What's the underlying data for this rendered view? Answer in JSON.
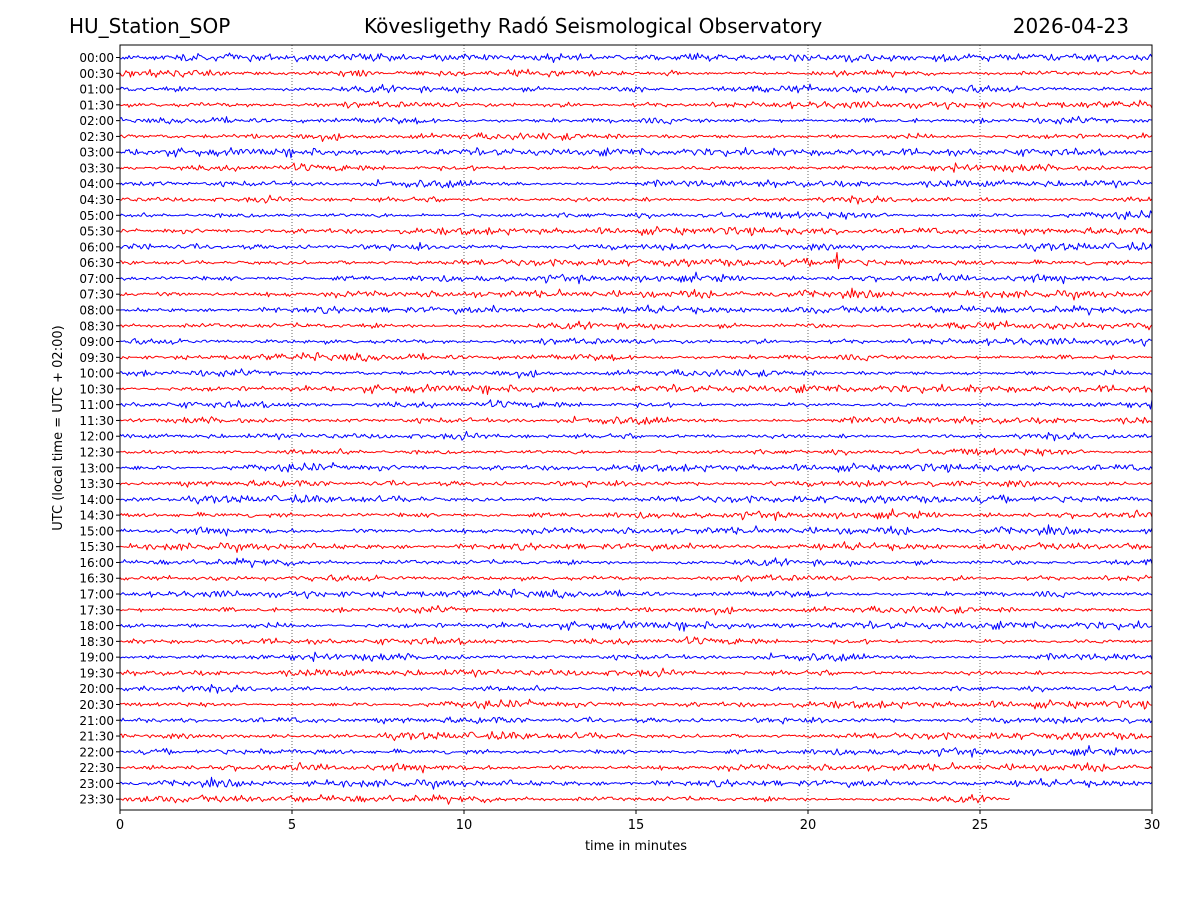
{
  "header": {
    "station": "HU_Station_SOP",
    "observatory": "Kövesligethy Radó Seismological Observatory",
    "date": "2026-04-23"
  },
  "chart_data": {
    "type": "line",
    "title": "Kövesligethy Radó Seismological Observatory",
    "xlabel": "time in minutes",
    "ylabel": "UTC (local time = UTC + 02:00)",
    "xlim": [
      0,
      30
    ],
    "xticks": [
      0,
      5,
      10,
      15,
      20,
      25,
      30
    ],
    "grid": "vertical dotted lines at x ticks",
    "series_colors": [
      "#0000ff",
      "#ff0000"
    ],
    "traces": [
      {
        "label": "00:00",
        "color": "blue",
        "end_min": 30
      },
      {
        "label": "00:30",
        "color": "red",
        "end_min": 30
      },
      {
        "label": "01:00",
        "color": "blue",
        "end_min": 30
      },
      {
        "label": "01:30",
        "color": "red",
        "end_min": 30
      },
      {
        "label": "02:00",
        "color": "blue",
        "end_min": 30
      },
      {
        "label": "02:30",
        "color": "red",
        "end_min": 30
      },
      {
        "label": "03:00",
        "color": "blue",
        "end_min": 30
      },
      {
        "label": "03:30",
        "color": "red",
        "end_min": 30
      },
      {
        "label": "04:00",
        "color": "blue",
        "end_min": 30
      },
      {
        "label": "04:30",
        "color": "red",
        "end_min": 30
      },
      {
        "label": "05:00",
        "color": "blue",
        "end_min": 30
      },
      {
        "label": "05:30",
        "color": "red",
        "end_min": 30
      },
      {
        "label": "06:00",
        "color": "blue",
        "end_min": 30
      },
      {
        "label": "06:30",
        "color": "red",
        "end_min": 30
      },
      {
        "label": "07:00",
        "color": "blue",
        "end_min": 30
      },
      {
        "label": "07:30",
        "color": "red",
        "end_min": 30
      },
      {
        "label": "08:00",
        "color": "blue",
        "end_min": 30
      },
      {
        "label": "08:30",
        "color": "red",
        "end_min": 30
      },
      {
        "label": "09:00",
        "color": "blue",
        "end_min": 30
      },
      {
        "label": "09:30",
        "color": "red",
        "end_min": 30
      },
      {
        "label": "10:00",
        "color": "blue",
        "end_min": 30
      },
      {
        "label": "10:30",
        "color": "red",
        "end_min": 30
      },
      {
        "label": "11:00",
        "color": "blue",
        "end_min": 30
      },
      {
        "label": "11:30",
        "color": "red",
        "end_min": 30
      },
      {
        "label": "12:00",
        "color": "blue",
        "end_min": 30
      },
      {
        "label": "12:30",
        "color": "red",
        "end_min": 30
      },
      {
        "label": "13:00",
        "color": "blue",
        "end_min": 30
      },
      {
        "label": "13:30",
        "color": "red",
        "end_min": 30
      },
      {
        "label": "14:00",
        "color": "blue",
        "end_min": 30
      },
      {
        "label": "14:30",
        "color": "red",
        "end_min": 30
      },
      {
        "label": "15:00",
        "color": "blue",
        "end_min": 30
      },
      {
        "label": "15:30",
        "color": "red",
        "end_min": 30
      },
      {
        "label": "16:00",
        "color": "blue",
        "end_min": 30
      },
      {
        "label": "16:30",
        "color": "red",
        "end_min": 30
      },
      {
        "label": "17:00",
        "color": "blue",
        "end_min": 30
      },
      {
        "label": "17:30",
        "color": "red",
        "end_min": 30
      },
      {
        "label": "18:00",
        "color": "blue",
        "end_min": 30
      },
      {
        "label": "18:30",
        "color": "red",
        "end_min": 30
      },
      {
        "label": "19:00",
        "color": "blue",
        "end_min": 30
      },
      {
        "label": "19:30",
        "color": "red",
        "end_min": 30
      },
      {
        "label": "20:00",
        "color": "blue",
        "end_min": 30
      },
      {
        "label": "20:30",
        "color": "red",
        "end_min": 30
      },
      {
        "label": "21:00",
        "color": "blue",
        "end_min": 30
      },
      {
        "label": "21:30",
        "color": "red",
        "end_min": 30
      },
      {
        "label": "22:00",
        "color": "blue",
        "end_min": 30
      },
      {
        "label": "22:30",
        "color": "red",
        "end_min": 30
      },
      {
        "label": "23:00",
        "color": "blue",
        "end_min": 30
      },
      {
        "label": "23:30",
        "color": "red",
        "end_min": 25.9
      }
    ],
    "events": [
      {
        "trace": "06:30",
        "x_min": 20.8,
        "amplitude": "large"
      },
      {
        "trace": "06:00",
        "x_min": 8.7,
        "amplitude": "medium"
      },
      {
        "trace": "06:00",
        "x_min": 0.6,
        "amplitude": "medium"
      },
      {
        "trace": "00:00",
        "x_min": 1.9,
        "amplitude": "small"
      },
      {
        "trace": "01:00",
        "x_min": 15.1,
        "amplitude": "small"
      },
      {
        "trace": "08:00",
        "x_min": 10.9,
        "amplitude": "small"
      }
    ]
  }
}
